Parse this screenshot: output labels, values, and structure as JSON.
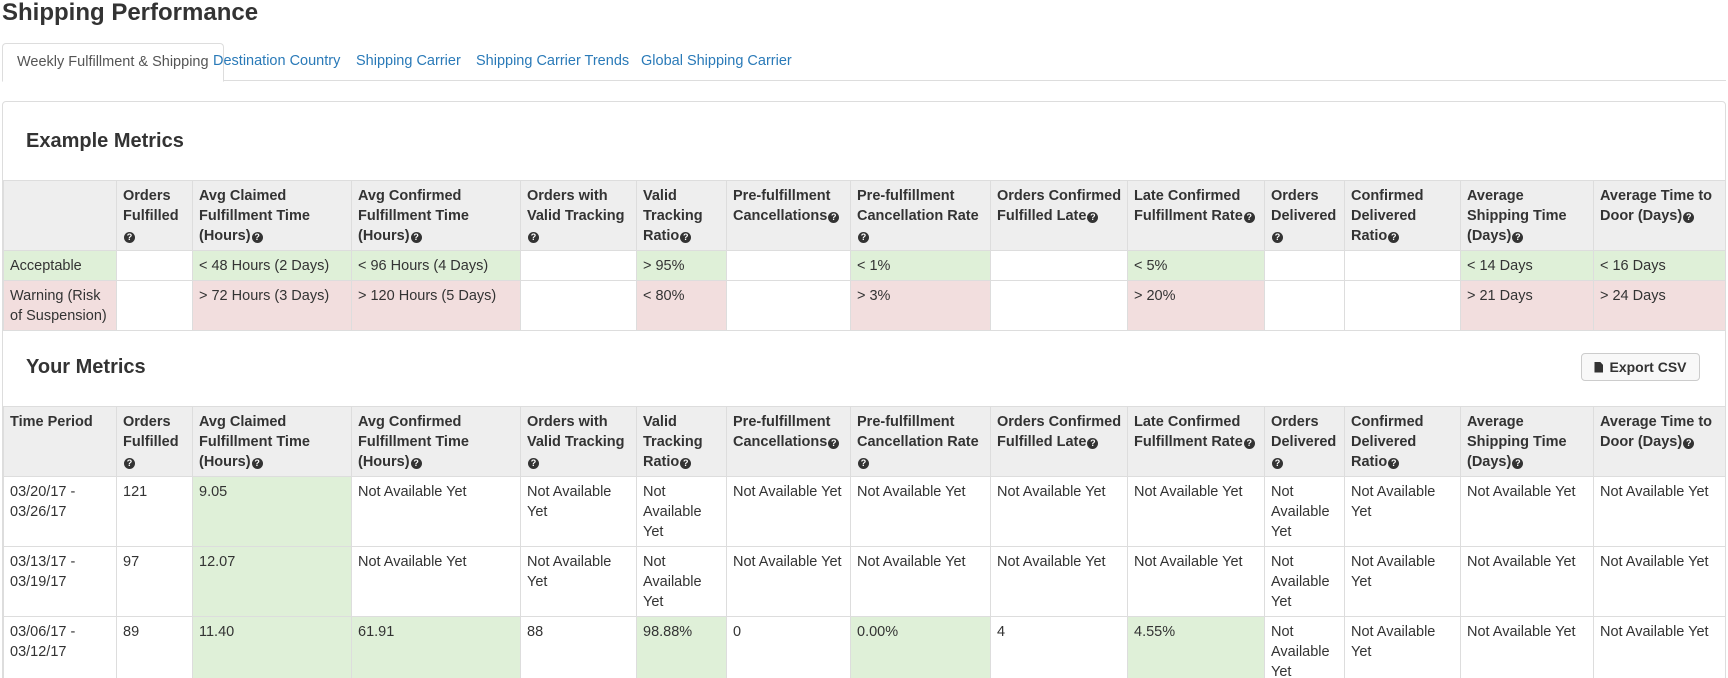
{
  "page": {
    "title": "Shipping Performance"
  },
  "tabs": [
    {
      "label": "Weekly Fulfillment & Shipping"
    },
    {
      "label": "Destination Country"
    },
    {
      "label": "Shipping Carrier"
    },
    {
      "label": "Shipping Carrier Trends"
    },
    {
      "label": "Global Shipping Carrier"
    }
  ],
  "example": {
    "title": "Example Metrics",
    "columns": [
      "",
      "Orders Fulfilled",
      "Avg Claimed Fulfillment Time (Hours)",
      "Avg Confirmed Fulfillment Time (Hours)",
      "Orders with Valid Tracking",
      "Valid Tracking Ratio",
      "Pre-fulfillment Cancellations",
      "Pre-fulfillment Cancellation Rate",
      "Orders Confirmed Fulfilled Late",
      "Late Confirmed Fulfillment Rate",
      "Orders Delivered",
      "Confirmed Delivered Ratio",
      "Average Shipping Time (Days)",
      "Average Time to Door (Days)"
    ],
    "rows": [
      [
        "Acceptable",
        "",
        "< 48 Hours (2 Days)",
        "< 96 Hours (4 Days)",
        "",
        "> 95%",
        "",
        "< 1%",
        "",
        "< 5%",
        "",
        "",
        "< 14 Days",
        "< 16 Days"
      ],
      [
        "Warning (Risk of Suspension)",
        "",
        "> 72 Hours (3 Days)",
        "> 120 Hours (5 Days)",
        "",
        "< 80%",
        "",
        "> 3%",
        "",
        "> 20%",
        "",
        "",
        "> 21 Days",
        "> 24 Days"
      ]
    ]
  },
  "yours": {
    "title": "Your Metrics",
    "export_label": "Export CSV",
    "columns": [
      "Time Period",
      "Orders Fulfilled",
      "Avg Claimed Fulfillment Time (Hours)",
      "Avg Confirmed Fulfillment Time (Hours)",
      "Orders with Valid Tracking",
      "Valid Tracking Ratio",
      "Pre-fulfillment Cancellations",
      "Pre-fulfillment Cancellation Rate",
      "Orders Confirmed Fulfilled Late",
      "Late Confirmed Fulfillment Rate",
      "Orders Delivered",
      "Confirmed Delivered Ratio",
      "Average Shipping Time (Days)",
      "Average Time to Door (Days)"
    ],
    "rows": [
      [
        "03/20/17 - 03/26/17",
        "121",
        "9.05",
        "Not Available Yet",
        "Not Available Yet",
        "Not Available Yet",
        "Not Available Yet",
        "Not Available Yet",
        "Not Available Yet",
        "Not Available Yet",
        "Not Available Yet",
        "Not Available Yet",
        "Not Available Yet",
        "Not Available Yet"
      ],
      [
        "03/13/17 - 03/19/17",
        "97",
        "12.07",
        "Not Available Yet",
        "Not Available Yet",
        "Not Available Yet",
        "Not Available Yet",
        "Not Available Yet",
        "Not Available Yet",
        "Not Available Yet",
        "Not Available Yet",
        "Not Available Yet",
        "Not Available Yet",
        "Not Available Yet"
      ],
      [
        "03/06/17 - 03/12/17",
        "89",
        "11.40",
        "61.91",
        "88",
        "98.88%",
        "0",
        "0.00%",
        "4",
        "4.55%",
        "Not Available Yet",
        "Not Available Yet",
        "Not Available Yet",
        "Not Available Yet"
      ]
    ]
  },
  "icons": {
    "help": "question-circle-icon",
    "export": "file-icon"
  },
  "colors": {
    "link": "#2a7ab8",
    "good": "#dff0d8",
    "bad": "#f2dede",
    "header_bg": "#eeeeee",
    "muted": "#bbbbbb"
  }
}
